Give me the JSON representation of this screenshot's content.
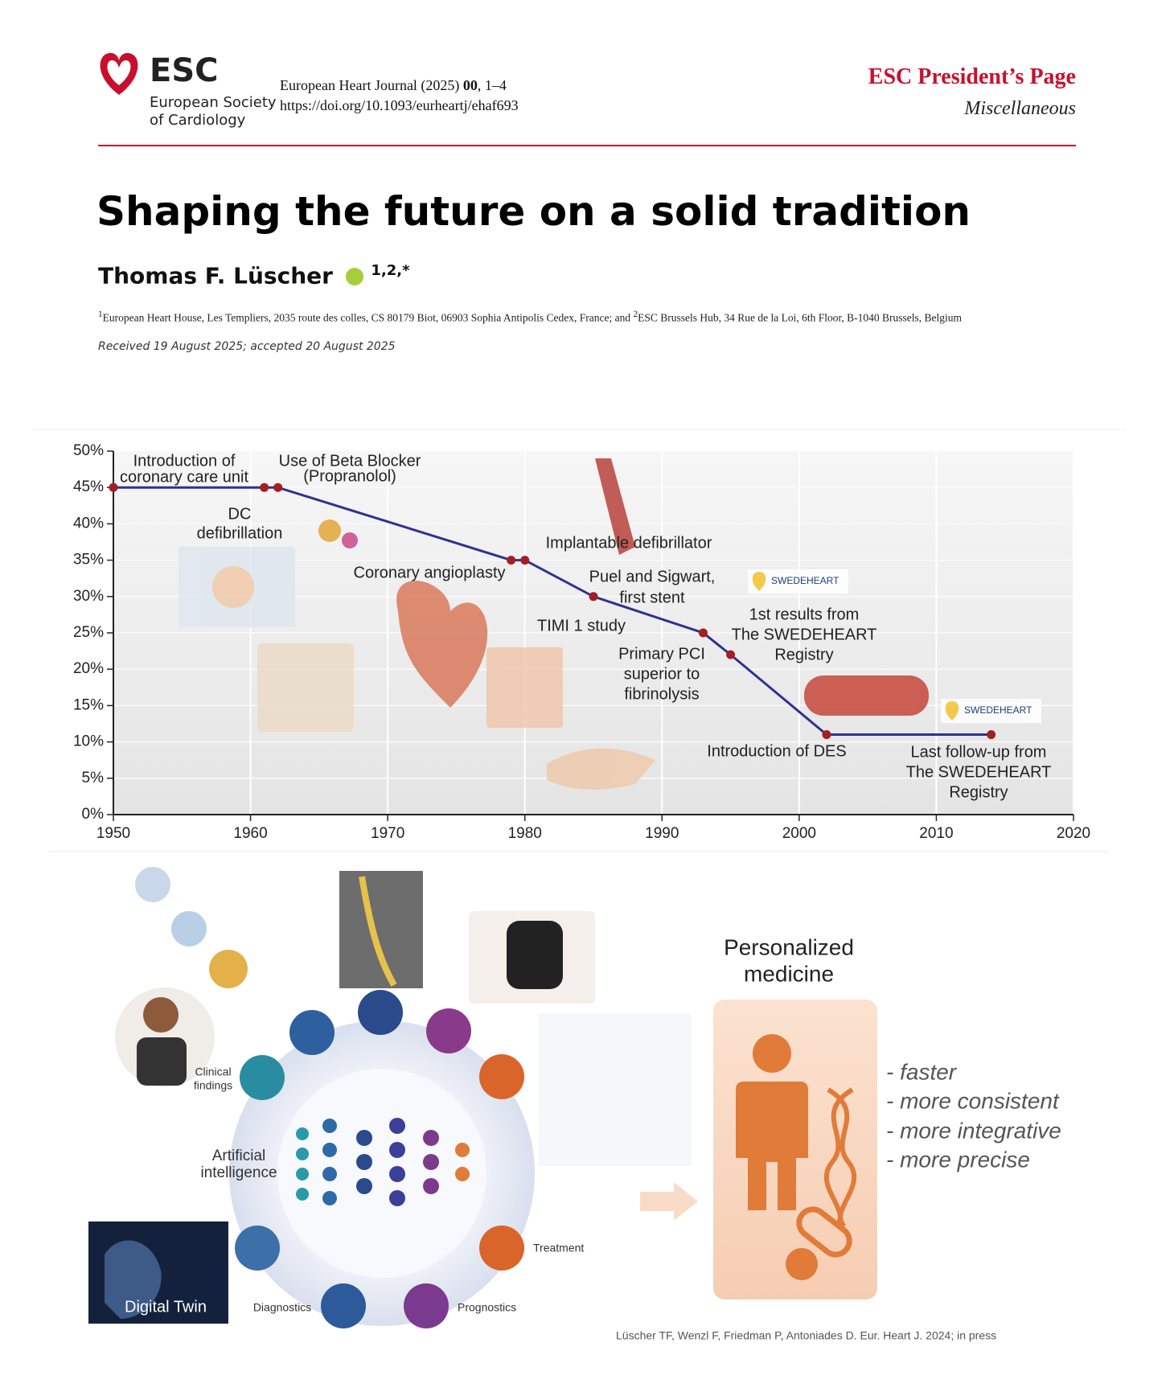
{
  "header": {
    "society_abbr": "ESC",
    "society_name_lines": [
      "European Society",
      "of Cardiology"
    ],
    "journal": "European Heart Journal (2025)",
    "volume": "00",
    "pages": ", 1–4",
    "doi": "https://doi.org/10.1093/eurheartj/ehaf693",
    "section": "ESC President’s Page",
    "category": "Miscellaneous"
  },
  "title": "Shaping the future on a solid tradition",
  "author": {
    "name": "Thomas F. Lüscher",
    "marks": "1,2,*"
  },
  "affiliations": [
    {
      "mark": "1",
      "text": "European Heart House, Les Templiers, 2035 route des colles, CS 80179 Biot, 06903 Sophia Antipolis Cedex, France; and"
    },
    {
      "mark": "2",
      "text": "ESC Brussels Hub, 34 Rue de la Loi, 6th Floor, B-1040 Brussels, Belgium"
    }
  ],
  "received": "Received 19 August 2025; accepted 20 August 2025",
  "chart_data": {
    "type": "line",
    "x": [
      1950,
      1961,
      1962,
      1979,
      1980,
      1985,
      1993,
      1995,
      2002,
      2014
    ],
    "values": [
      45,
      45,
      45,
      35,
      35,
      30,
      25,
      22,
      11,
      11
    ],
    "color": "#2e3192",
    "marker_color": "#a31f24",
    "xlim": [
      1950,
      2020
    ],
    "xticks": [
      1950,
      1960,
      1970,
      1980,
      1990,
      2000,
      2010,
      2020
    ],
    "ylim": [
      0,
      50
    ],
    "yticks": [
      {
        "value": 0,
        "label": "0%"
      },
      {
        "value": 5,
        "label": "5%"
      },
      {
        "value": 10,
        "label": "10%"
      },
      {
        "value": 15,
        "label": "15%"
      },
      {
        "value": 20,
        "label": "20%"
      },
      {
        "value": 25,
        "label": "25%"
      },
      {
        "value": 30,
        "label": "30%"
      },
      {
        "value": 35,
        "label": "35%"
      },
      {
        "value": 40,
        "label": "40%"
      },
      {
        "value": 45,
        "label": "45%"
      },
      {
        "value": 50,
        "label": "50%"
      }
    ],
    "grid": true,
    "annotations": [
      {
        "lines": [
          "Introduction of",
          "coronary care unit"
        ]
      },
      {
        "lines": [
          "Use of Beta Blocker",
          "(Propranolol)"
        ]
      },
      {
        "lines": [
          "DC",
          "defibrillation"
        ]
      },
      {
        "lines": [
          "Coronary angioplasty"
        ]
      },
      {
        "lines": [
          "Implantable defibrillator"
        ]
      },
      {
        "lines": [
          "Puel and Sigwart,",
          "first stent"
        ]
      },
      {
        "lines": [
          "TIMI 1 study"
        ]
      },
      {
        "lines": [
          "Primary PCI",
          "superior to",
          "fibrinolysis"
        ]
      },
      {
        "lines": [
          "1st results from",
          "The SWEDEHEART",
          "Registry"
        ]
      },
      {
        "lines": [
          "Introduction of DES"
        ]
      },
      {
        "lines": [
          "Last follow-up from",
          "The SWEDEHEART",
          "Registry"
        ]
      }
    ],
    "logo_labels": [
      "SWEDEHEART",
      "SWEDEHEART"
    ]
  },
  "figure": {
    "title_lines": [
      "Personalized",
      "medicine"
    ],
    "benefits": [
      "- faster",
      "- more consistent",
      "- more integrative",
      "- more precise"
    ],
    "clinical_lines": [
      "Clinical",
      "findings"
    ],
    "ai_lines": [
      "Artificial",
      "intelligence"
    ],
    "treatment": "Treatment",
    "diagnostics": "Diagnostics",
    "prognostics": "Prognostics",
    "digital_twin": "Digital Twin",
    "credit": "Lüscher TF, Wenzl F, Friedman P, Antoniades D. Eur. Heart J. 2024; in press"
  }
}
